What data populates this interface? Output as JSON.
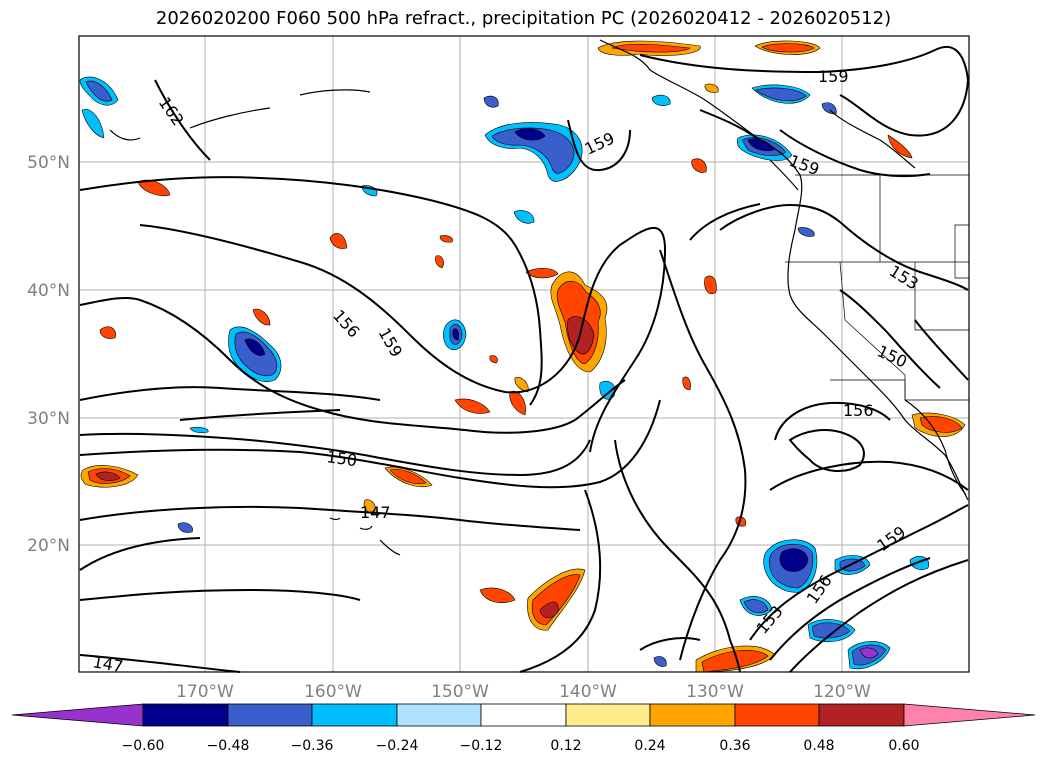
{
  "title": "2026020200 F060 500 hPa refract., precipitation PC (2026020412 - 2026020512)",
  "lat_labels": [
    "50°N",
    "40°N",
    "30°N",
    "20°N"
  ],
  "lon_labels": [
    "170°W",
    "160°W",
    "150°W",
    "140°W",
    "130°W",
    "120°W"
  ],
  "contour_labels": [
    "162",
    "159",
    "159",
    "159",
    "159",
    "159",
    "156",
    "156",
    "156",
    "153",
    "153",
    "150",
    "150",
    "147",
    "147"
  ],
  "colorbar": {
    "ticks": [
      "−0.60",
      "−0.48",
      "−0.36",
      "−0.24",
      "−0.12",
      "0.12",
      "0.24",
      "0.36",
      "0.48",
      "0.60"
    ],
    "colors": [
      "#9932cc",
      "#00008b",
      "#3a5fcd",
      "#00bfff",
      "#b0e2ff",
      "#ffffff",
      "#ffec8b",
      "#ffa500",
      "#ff4500",
      "#b22222",
      "#ff82ab"
    ]
  }
}
